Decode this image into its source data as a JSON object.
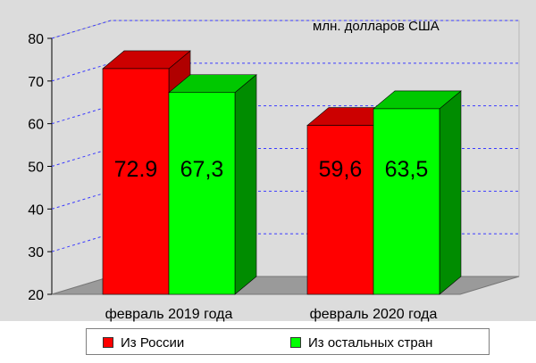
{
  "chart_data": {
    "type": "bar",
    "title": "млн. долларов США",
    "categories": [
      "февраль 2019 года",
      "февраль 2020 года"
    ],
    "series": [
      {
        "name": "Из России",
        "values": [
          72.9,
          59.6
        ],
        "labels": [
          "72.9",
          "59,6"
        ],
        "color": "#ff0000",
        "side_color": "#b00000",
        "top_color": "#cc0000"
      },
      {
        "name": "Из остальных стран",
        "values": [
          67.3,
          63.5
        ],
        "labels": [
          "67,3",
          "63,5"
        ],
        "color": "#00ff00",
        "side_color": "#008c00",
        "top_color": "#00c800"
      }
    ],
    "y_ticks": [
      20,
      30,
      40,
      50,
      60,
      70,
      80
    ],
    "ylim": [
      20,
      80
    ],
    "grid": true,
    "legend_position": "bottom",
    "colors": {
      "background": "#dcdcdc",
      "floor": "#9a9a9a",
      "grid": "#3a3aff"
    }
  }
}
